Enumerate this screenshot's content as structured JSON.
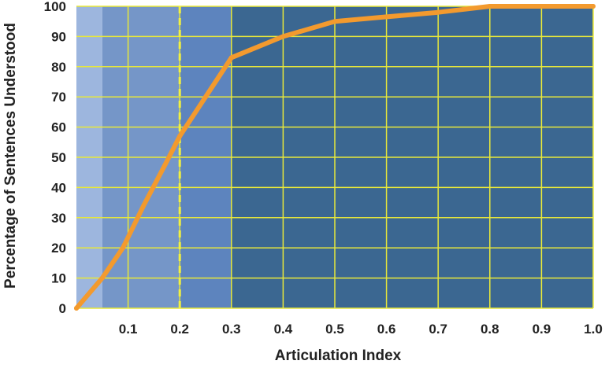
{
  "chart_data": {
    "type": "line",
    "title": "",
    "xlabel": "Articulation Index",
    "ylabel": "Percentage of Sentences Understood",
    "xlim": [
      0,
      1.0
    ],
    "ylim": [
      0,
      100
    ],
    "xticks": [
      "0.1",
      "0.2",
      "0.3",
      "0.4",
      "0.5",
      "0.6",
      "0.7",
      "0.8",
      "0.9",
      "1.0"
    ],
    "yticks": [
      "0",
      "10",
      "20",
      "30",
      "40",
      "50",
      "60",
      "70",
      "80",
      "90",
      "100"
    ],
    "grid": true,
    "series": [
      {
        "x": [
          0,
          0.05,
          0.09,
          0.13,
          0.17,
          0.2,
          0.25,
          0.3,
          0.4,
          0.5,
          0.6,
          0.7,
          0.8,
          0.9,
          1.0
        ],
        "y": [
          0,
          10,
          20,
          34,
          47,
          57,
          70,
          83,
          90,
          95,
          96.5,
          98,
          100,
          100,
          100
        ]
      }
    ],
    "reference_line": {
      "x": 0.2,
      "style": "dashed"
    },
    "background_bands": [
      {
        "from": 0,
        "to": 0.05
      },
      {
        "from": 0.05,
        "to": 0.2
      },
      {
        "from": 0.2,
        "to": 0.3
      },
      {
        "from": 0.3,
        "to": 1.0
      }
    ],
    "colors": {
      "line": "#F39A2E",
      "grid": "#E8E83A",
      "reference_line": "#F2F040",
      "bands": [
        "#9DB6DE",
        "#7596C8",
        "#5D84BE",
        "#3B6791"
      ]
    }
  }
}
